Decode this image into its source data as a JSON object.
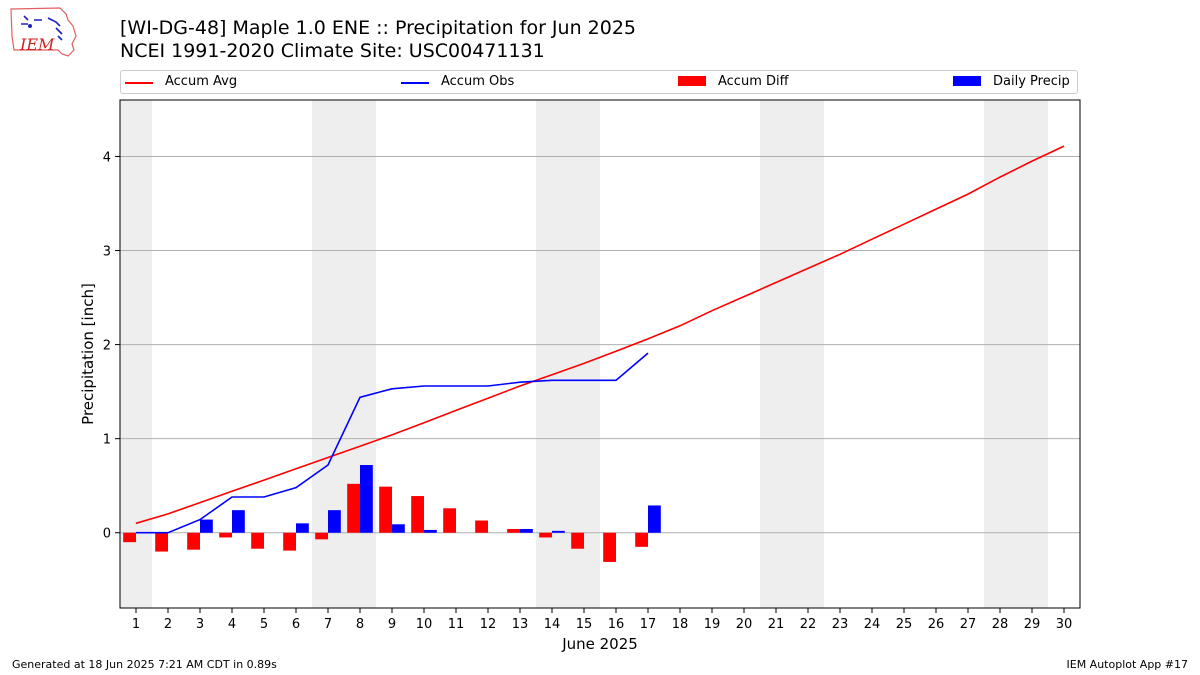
{
  "logo": {
    "text": "IEM"
  },
  "header": {
    "title": "[WI-DG-48] Maple 1.0 ENE :: Precipitation for Jun 2025",
    "subtitle": "NCEI 1991-2020 Climate Site: USC00471131"
  },
  "legend": {
    "items": [
      {
        "label": "Accum Avg",
        "kind": "line",
        "color": "#ff0000"
      },
      {
        "label": "Accum Obs",
        "kind": "line",
        "color": "#0000ff"
      },
      {
        "label": "Accum Diff",
        "kind": "bar",
        "color": "#ff0000"
      },
      {
        "label": "Daily Precip",
        "kind": "bar",
        "color": "#0000ff"
      }
    ]
  },
  "chart_data": {
    "type": "bar",
    "xlabel": "June 2025",
    "ylabel": "Precipitation [inch]",
    "xlim": [
      0.5,
      30.5
    ],
    "ylim": [
      -0.8,
      4.6
    ],
    "x_ticks": [
      1,
      2,
      3,
      4,
      5,
      6,
      7,
      8,
      9,
      10,
      11,
      12,
      13,
      14,
      15,
      16,
      17,
      18,
      19,
      20,
      21,
      22,
      23,
      24,
      25,
      26,
      27,
      28,
      29,
      30
    ],
    "y_ticks": [
      0,
      1,
      2,
      3,
      4
    ],
    "grid": "horizontal",
    "weekend_shading": [
      [
        0.5,
        1.5
      ],
      [
        6.5,
        8.5
      ],
      [
        13.5,
        15.5
      ],
      [
        20.5,
        22.5
      ],
      [
        27.5,
        29.5
      ]
    ],
    "series": [
      {
        "name": "Accum Avg",
        "kind": "line",
        "color": "#ff0000",
        "x": [
          1,
          2,
          3,
          4,
          5,
          6,
          7,
          8,
          9,
          10,
          11,
          12,
          13,
          14,
          15,
          16,
          17,
          18,
          19,
          20,
          21,
          22,
          23,
          24,
          25,
          26,
          27,
          28,
          29,
          30
        ],
        "values": [
          0.1,
          0.2,
          0.32,
          0.44,
          0.56,
          0.68,
          0.8,
          0.92,
          1.04,
          1.17,
          1.3,
          1.43,
          1.56,
          1.68,
          1.8,
          1.93,
          2.06,
          2.2,
          2.36,
          2.51,
          2.66,
          2.81,
          2.96,
          3.12,
          3.28,
          3.44,
          3.6,
          3.78,
          3.95,
          4.11
        ]
      },
      {
        "name": "Accum Obs",
        "kind": "line",
        "color": "#0000ff",
        "x": [
          1,
          2,
          3,
          4,
          5,
          6,
          7,
          8,
          9,
          10,
          11,
          12,
          13,
          14,
          15,
          16,
          17
        ],
        "values": [
          0.0,
          0.0,
          0.14,
          0.38,
          0.38,
          0.48,
          0.72,
          1.44,
          1.53,
          1.56,
          1.56,
          1.56,
          1.6,
          1.62,
          1.62,
          1.62,
          1.91
        ]
      },
      {
        "name": "Accum Diff",
        "kind": "bar",
        "color": "#ff0000",
        "x": [
          1,
          2,
          3,
          4,
          5,
          6,
          7,
          8,
          9,
          10,
          11,
          12,
          13,
          14,
          15,
          16,
          17
        ],
        "values": [
          -0.1,
          -0.2,
          -0.18,
          -0.05,
          -0.17,
          -0.19,
          -0.07,
          0.52,
          0.49,
          0.39,
          0.26,
          0.13,
          0.04,
          -0.05,
          -0.17,
          -0.31,
          -0.15
        ]
      },
      {
        "name": "Daily Precip",
        "kind": "bar",
        "color": "#0000ff",
        "x": [
          1,
          2,
          3,
          4,
          5,
          6,
          7,
          8,
          9,
          10,
          11,
          12,
          13,
          14,
          15,
          16,
          17
        ],
        "values": [
          0.0,
          0.0,
          0.14,
          0.24,
          0.0,
          0.1,
          0.24,
          0.72,
          0.09,
          0.03,
          0.0,
          0.0,
          0.04,
          0.02,
          0.0,
          0.0,
          0.29
        ]
      }
    ]
  },
  "footer": {
    "left": "Generated at 18 Jun 2025 7:21 AM CDT in 0.89s",
    "right": "IEM Autoplot App #17"
  }
}
